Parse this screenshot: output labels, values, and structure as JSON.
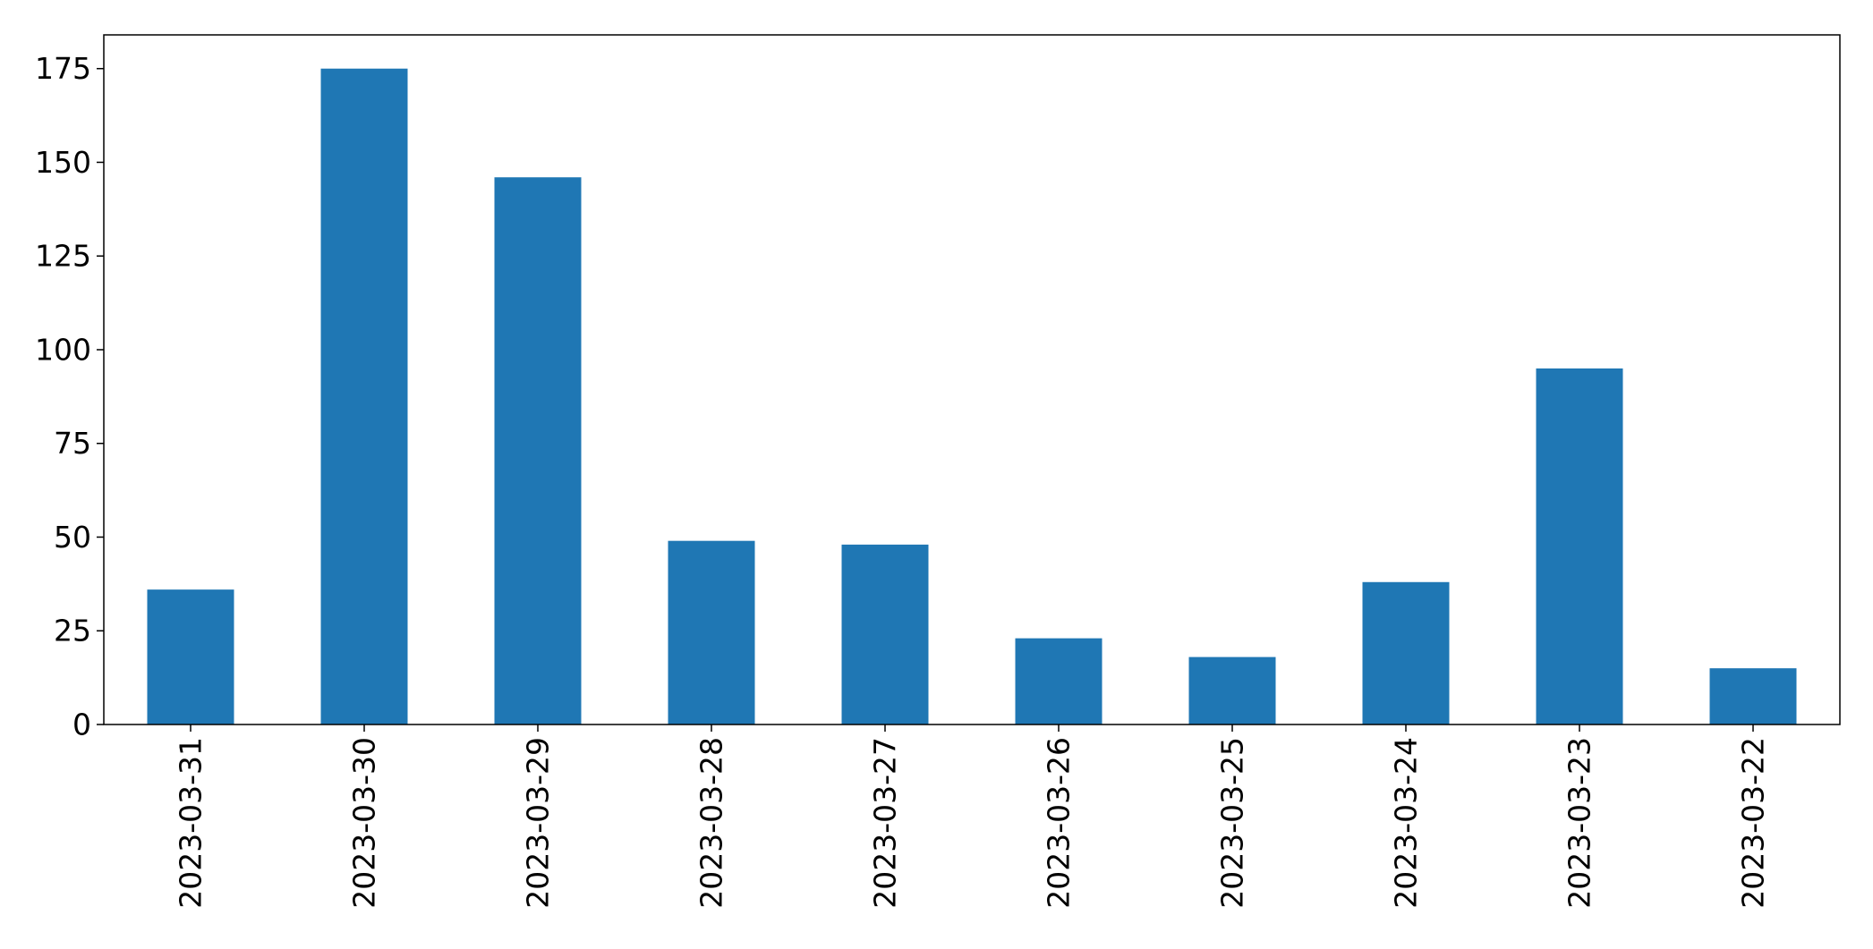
{
  "chart_data": {
    "type": "bar",
    "categories": [
      "2023-03-31",
      "2023-03-30",
      "2023-03-29",
      "2023-03-28",
      "2023-03-27",
      "2023-03-26",
      "2023-03-25",
      "2023-03-24",
      "2023-03-23",
      "2023-03-22"
    ],
    "values": [
      36,
      175,
      146,
      49,
      48,
      23,
      18,
      38,
      95,
      15
    ],
    "title": "",
    "xlabel": "",
    "ylabel": "",
    "ylim": [
      0,
      184
    ],
    "yticks": [
      0,
      25,
      50,
      75,
      100,
      125,
      150,
      175
    ],
    "ytick_labels": [
      "0",
      "25",
      "50",
      "75",
      "100",
      "125",
      "150",
      "175"
    ],
    "bar_color": "#1f77b4",
    "grid": false,
    "legend": "none"
  }
}
